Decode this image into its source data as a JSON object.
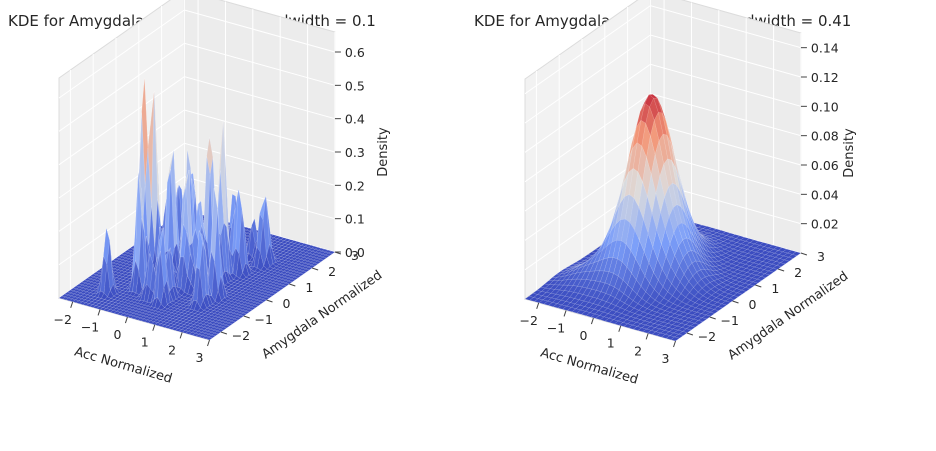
{
  "chart_data": [
    {
      "type": "surface",
      "title": "KDE for Amygdala and Acc with Bandwidth = 0.1",
      "xlabel": "Acc Normalized",
      "ylabel": "Amygdala Normalized",
      "zlabel": "Density",
      "xlim": [
        -2.5,
        3.0
      ],
      "ylim": [
        -2.5,
        3.0
      ],
      "zlim": [
        0.0,
        0.66
      ],
      "x_ticks": [
        "-2",
        "-1",
        "0",
        "1",
        "2",
        "3"
      ],
      "y_ticks": [
        "-2",
        "-1",
        "0",
        "1",
        "2",
        "3"
      ],
      "z_ticks": [
        "0.0",
        "0.1",
        "0.2",
        "0.3",
        "0.4",
        "0.5",
        "0.6"
      ],
      "colormap": "coolwarm",
      "bandwidth": 0.1,
      "peak_density": 0.62
    },
    {
      "type": "surface",
      "title": "KDE for Amygdala and Acc with Bandwidth = 0.41",
      "xlabel": "Acc Normalized",
      "ylabel": "Amygdala Normalized",
      "zlabel": "Density",
      "xlim": [
        -2.5,
        3.0
      ],
      "ylim": [
        -2.5,
        3.0
      ],
      "zlim": [
        0.0,
        0.15
      ],
      "x_ticks": [
        "-2",
        "-1",
        "0",
        "1",
        "2",
        "3"
      ],
      "y_ticks": [
        "-2",
        "-1",
        "0",
        "1",
        "2",
        "3"
      ],
      "z_ticks": [
        "0.02",
        "0.04",
        "0.06",
        "0.08",
        "0.10",
        "0.12",
        "0.14"
      ],
      "colormap": "coolwarm",
      "bandwidth": 0.41,
      "peak_density": 0.13
    }
  ]
}
